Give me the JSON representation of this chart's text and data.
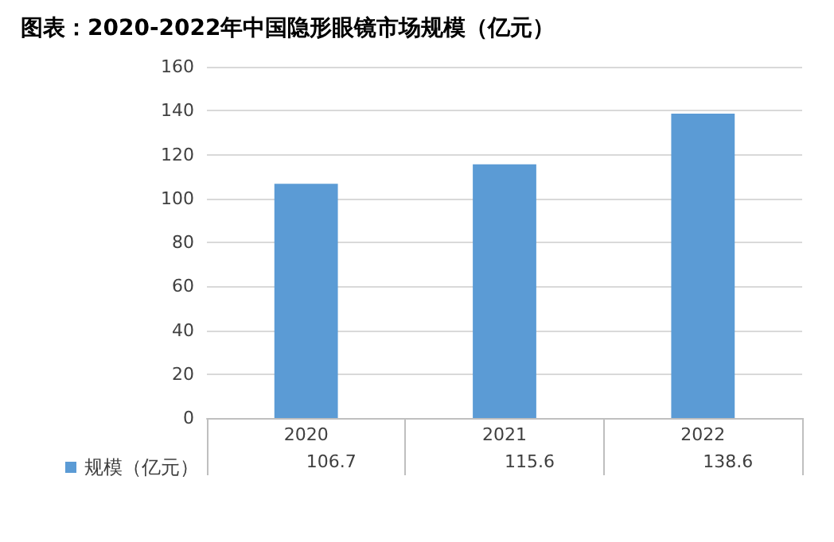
{
  "chart_data": {
    "type": "bar",
    "title": "图表：2020-2022年中国隐形眼镜市场规模（亿元）",
    "categories": [
      "2020",
      "2021",
      "2022"
    ],
    "series": [
      {
        "name": "规模（亿元）",
        "color": "#5b9bd5",
        "values": [
          106.7,
          115.6,
          138.6
        ]
      }
    ],
    "ylim": [
      0,
      160
    ],
    "yticks": [
      0,
      20,
      40,
      60,
      80,
      100,
      120,
      140,
      160
    ],
    "grid": "y",
    "legend": "bottom left",
    "data_labels": true
  }
}
